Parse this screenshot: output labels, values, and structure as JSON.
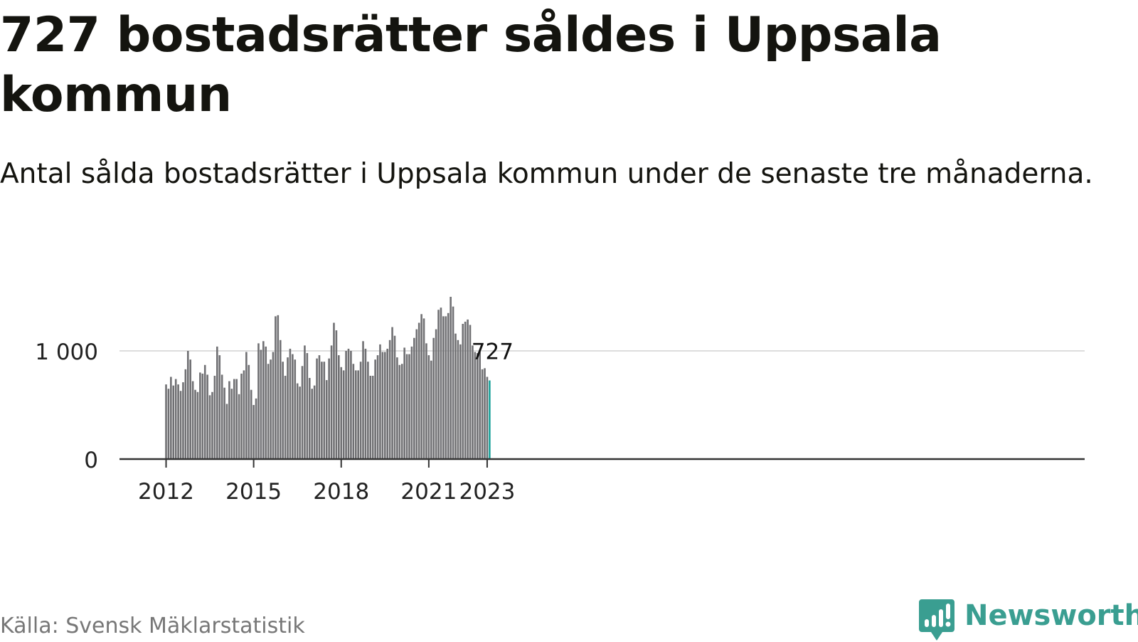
{
  "header": {
    "title": "727 bostadsrätter såldes i Uppsala kommun",
    "subtitle": "Antal sålda bostadsrätter i Uppsala kommun under de senaste tre månaderna."
  },
  "footer": {
    "source": "Källa: Svensk Mäklarstatistik",
    "brand": "Newsworthy",
    "brand_icon": "newsworthy-logo-icon"
  },
  "colors": {
    "bar": "#707073",
    "highlight": "#1aa29a",
    "brand": "#3a9e91",
    "gridline": "#dddddd",
    "axis": "#333333"
  },
  "chart_data": {
    "type": "bar",
    "title": "",
    "xlabel": "",
    "ylabel": "",
    "ylim": [
      0,
      1500
    ],
    "yticks": [
      0,
      1000
    ],
    "ytick_labels": [
      "0",
      "1 000"
    ],
    "xticks": [
      "2012",
      "2015",
      "2018",
      "2021",
      "2023"
    ],
    "first_period": "2012-01",
    "last_period": "2023-01",
    "grid": true,
    "highlight_label": "727",
    "values": [
      690,
      650,
      760,
      680,
      740,
      690,
      630,
      710,
      830,
      1000,
      920,
      720,
      640,
      620,
      800,
      790,
      870,
      780,
      590,
      620,
      770,
      1040,
      960,
      780,
      660,
      510,
      720,
      650,
      740,
      740,
      600,
      790,
      820,
      990,
      870,
      640,
      500,
      560,
      1070,
      1010,
      1090,
      1040,
      880,
      920,
      990,
      1320,
      1330,
      1100,
      900,
      770,
      940,
      1020,
      970,
      920,
      700,
      670,
      860,
      1050,
      980,
      750,
      650,
      680,
      930,
      960,
      900,
      900,
      730,
      930,
      1050,
      1260,
      1190,
      960,
      850,
      820,
      1000,
      1020,
      1000,
      880,
      820,
      820,
      900,
      1090,
      1020,
      900,
      770,
      770,
      920,
      960,
      1060,
      990,
      990,
      1020,
      1100,
      1220,
      1140,
      940,
      870,
      880,
      1030,
      970,
      970,
      1040,
      1120,
      1200,
      1260,
      1340,
      1300,
      1070,
      960,
      910,
      1120,
      1200,
      1380,
      1400,
      1320,
      1320,
      1350,
      1500,
      1410,
      1160,
      1100,
      1060,
      1250,
      1270,
      1290,
      1240,
      1050,
      990,
      980,
      990,
      830,
      840,
      760,
      727
    ]
  }
}
